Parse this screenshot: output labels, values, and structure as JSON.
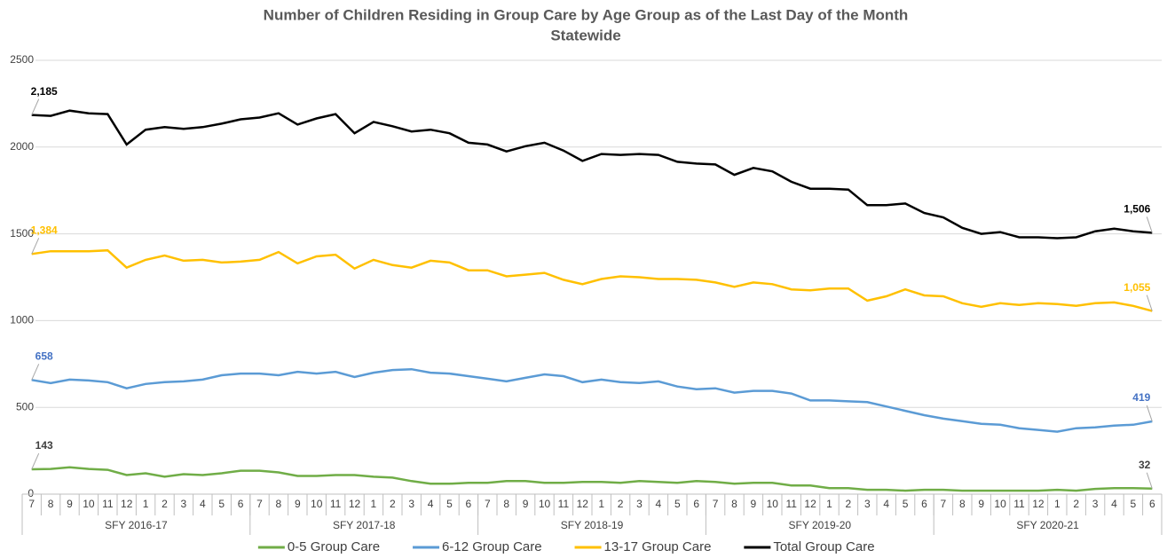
{
  "chart_data": {
    "type": "line",
    "title": "Number of Children Residing in Group Care by Age Group as of the Last Day of the Month",
    "subtitle": "Statewide",
    "categories": [
      "7",
      "8",
      "9",
      "10",
      "11",
      "12",
      "1",
      "2",
      "3",
      "4",
      "5",
      "6",
      "7",
      "8",
      "9",
      "10",
      "11",
      "12",
      "1",
      "2",
      "3",
      "4",
      "5",
      "6",
      "7",
      "8",
      "9",
      "10",
      "11",
      "12",
      "1",
      "2",
      "3",
      "4",
      "5",
      "6",
      "7",
      "8",
      "9",
      "10",
      "11",
      "12",
      "1",
      "2",
      "3",
      "4",
      "5",
      "6",
      "7",
      "8",
      "9",
      "10",
      "11",
      "12",
      "1",
      "2",
      "3",
      "4",
      "5",
      "6"
    ],
    "groups": [
      "SFY 2016-17",
      "SFY 2017-18",
      "SFY 2018-19",
      "SFY 2019-20",
      "SFY 2020-21"
    ],
    "series": [
      {
        "name": "0-5 Group Care",
        "color": "#70ad47",
        "label_color": "#404040",
        "values": [
          143,
          145,
          155,
          145,
          140,
          110,
          120,
          100,
          115,
          110,
          120,
          135,
          135,
          125,
          105,
          105,
          110,
          110,
          100,
          95,
          75,
          60,
          60,
          65,
          65,
          75,
          75,
          65,
          65,
          70,
          70,
          65,
          75,
          70,
          65,
          75,
          70,
          60,
          65,
          65,
          50,
          50,
          35,
          35,
          25,
          25,
          20,
          25,
          25,
          20,
          20,
          20,
          20,
          20,
          25,
          20,
          30,
          35,
          35,
          32
        ],
        "value_labels": [
          "143",
          null,
          null,
          null,
          null,
          null,
          null,
          null,
          null,
          null,
          null,
          null,
          null,
          null,
          null,
          null,
          null,
          null,
          null,
          null,
          null,
          null,
          null,
          null,
          null,
          null,
          null,
          null,
          null,
          null,
          null,
          null,
          null,
          null,
          null,
          null,
          null,
          null,
          null,
          null,
          null,
          null,
          null,
          null,
          null,
          null,
          null,
          null,
          null,
          null,
          null,
          null,
          null,
          null,
          null,
          null,
          null,
          null,
          null,
          "32"
        ]
      },
      {
        "name": "6-12 Group Care",
        "color": "#5b9bd5",
        "label_color": "#4472c4",
        "values": [
          658,
          640,
          660,
          655,
          645,
          610,
          635,
          645,
          650,
          660,
          685,
          695,
          695,
          685,
          705,
          695,
          705,
          675,
          700,
          715,
          720,
          700,
          695,
          680,
          665,
          650,
          670,
          690,
          680,
          645,
          660,
          645,
          640,
          650,
          620,
          605,
          610,
          585,
          595,
          595,
          580,
          540,
          540,
          535,
          530,
          505,
          480,
          455,
          435,
          420,
          405,
          400,
          380,
          370,
          360,
          380,
          385,
          395,
          400,
          419
        ],
        "value_labels": [
          "658",
          null,
          null,
          null,
          null,
          null,
          null,
          null,
          null,
          null,
          null,
          null,
          null,
          null,
          null,
          null,
          null,
          null,
          null,
          null,
          null,
          null,
          null,
          null,
          null,
          null,
          null,
          null,
          null,
          null,
          null,
          null,
          null,
          null,
          null,
          null,
          null,
          null,
          null,
          null,
          null,
          null,
          null,
          null,
          null,
          null,
          null,
          null,
          null,
          null,
          null,
          null,
          null,
          null,
          null,
          null,
          null,
          null,
          null,
          "419"
        ]
      },
      {
        "name": "13-17 Group Care",
        "color": "#ffc000",
        "label_color": "#ffc000",
        "values": [
          1384,
          1400,
          1400,
          1400,
          1405,
          1305,
          1350,
          1375,
          1345,
          1350,
          1335,
          1340,
          1350,
          1395,
          1330,
          1370,
          1380,
          1300,
          1350,
          1320,
          1305,
          1345,
          1335,
          1290,
          1290,
          1255,
          1265,
          1275,
          1235,
          1210,
          1240,
          1255,
          1250,
          1240,
          1240,
          1235,
          1220,
          1195,
          1220,
          1210,
          1180,
          1175,
          1185,
          1185,
          1115,
          1140,
          1180,
          1145,
          1140,
          1100,
          1080,
          1100,
          1090,
          1100,
          1095,
          1085,
          1100,
          1105,
          1085,
          1055
        ],
        "value_labels": [
          "1,384",
          null,
          null,
          null,
          null,
          null,
          null,
          null,
          null,
          null,
          null,
          null,
          null,
          null,
          null,
          null,
          null,
          null,
          null,
          null,
          null,
          null,
          null,
          null,
          null,
          null,
          null,
          null,
          null,
          null,
          null,
          null,
          null,
          null,
          null,
          null,
          null,
          null,
          null,
          null,
          null,
          null,
          null,
          null,
          null,
          null,
          null,
          null,
          null,
          null,
          null,
          null,
          null,
          null,
          null,
          null,
          null,
          null,
          null,
          "1,055"
        ]
      },
      {
        "name": "Total Group Care",
        "color": "#000000",
        "label_color": "#000000",
        "values": [
          2185,
          2180,
          2210,
          2195,
          2190,
          2015,
          2100,
          2115,
          2105,
          2115,
          2135,
          2160,
          2170,
          2195,
          2130,
          2165,
          2190,
          2080,
          2145,
          2120,
          2090,
          2100,
          2080,
          2025,
          2015,
          1975,
          2005,
          2025,
          1980,
          1920,
          1960,
          1955,
          1960,
          1955,
          1915,
          1905,
          1900,
          1840,
          1880,
          1860,
          1800,
          1760,
          1760,
          1755,
          1665,
          1665,
          1675,
          1620,
          1595,
          1535,
          1500,
          1510,
          1480,
          1480,
          1475,
          1480,
          1515,
          1530,
          1515,
          1506
        ],
        "value_labels": [
          "2,185",
          null,
          null,
          null,
          null,
          null,
          null,
          null,
          null,
          null,
          null,
          null,
          null,
          null,
          null,
          null,
          null,
          null,
          null,
          null,
          null,
          null,
          null,
          null,
          null,
          null,
          null,
          null,
          null,
          null,
          null,
          null,
          null,
          null,
          null,
          null,
          null,
          null,
          null,
          null,
          null,
          null,
          null,
          null,
          null,
          null,
          null,
          null,
          null,
          null,
          null,
          null,
          null,
          null,
          null,
          null,
          null,
          null,
          null,
          "1,506"
        ]
      }
    ],
    "ylim": [
      0,
      2500
    ],
    "yticks": [
      0,
      500,
      1000,
      1500,
      2000,
      2500
    ],
    "grid": true,
    "legend": "bottom"
  }
}
